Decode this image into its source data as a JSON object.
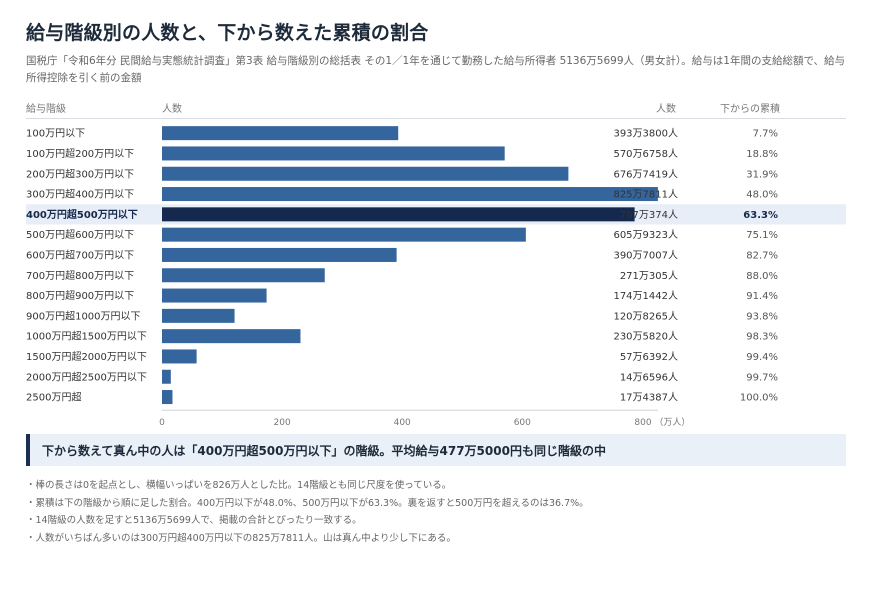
{
  "title": "給与階級別の人数と、下から数えた累積の割合",
  "subtitle": "国税庁「令和6年分 民間給与実態統計調査」第3表 給与階級別の総括表 その1／1年を通じて勤務した給与所得者 5136万5699人（男女計）。給与は1年間の支給総額で、給与所得控除を引く前の金額",
  "headers": {
    "bracket": "給与階級",
    "bar": "人数",
    "count": "人数",
    "cumulative": "下からの累積"
  },
  "colors": {
    "bar": "#34659c",
    "highlight_bar": "#15284d",
    "highlight_row": "#e7eef7"
  },
  "chart_data": {
    "type": "bar",
    "orientation": "horizontal",
    "categories": [
      "100万円以下",
      "100万円超200万円以下",
      "200万円超300万円以下",
      "300万円超400万円以下",
      "400万円超500万円以下",
      "500万円超600万円以下",
      "600万円超700万円以下",
      "700万円超800万円以下",
      "800万円超900万円以下",
      "900万円超1000万円以下",
      "1000万円超1500万円以下",
      "1500万円超2000万円以下",
      "2000万円超2500万円以下",
      "2500万円超"
    ],
    "values": [
      393.38,
      570.6758,
      676.7419,
      825.7811,
      787.0374,
      605.9323,
      390.7007,
      271.0305,
      174.1442,
      120.8265,
      230.582,
      57.6392,
      14.6596,
      17.4387
    ],
    "count_labels": [
      "393万3800人",
      "570万6758人",
      "676万7419人",
      "825万7811人",
      "787万374人",
      "605万9323人",
      "390万7007人",
      "271万305人",
      "174万1442人",
      "120万8265人",
      "230万5820人",
      "57万6392人",
      "14万6596人",
      "17万4387人"
    ],
    "cumulative_labels": [
      "7.7%",
      "18.8%",
      "31.9%",
      "48.0%",
      "63.3%",
      "75.1%",
      "82.7%",
      "88.0%",
      "91.4%",
      "93.8%",
      "98.3%",
      "99.4%",
      "99.7%",
      "100.0%"
    ],
    "highlight_index": 4,
    "xlim": [
      0,
      826
    ],
    "xticks": [
      0,
      200,
      400,
      600,
      800
    ],
    "x_unit": "（万人）"
  },
  "callout": "下から数えて真ん中の人は「400万円超500万円以下」の階級。平均給与477万5000円も同じ階級の中",
  "notes": [
    "・棒の長さは0を起点とし、横幅いっぱいを826万人とした比。14階級とも同じ尺度を使っている。",
    "・累積は下の階級から順に足した割合。400万円以下が48.0%、500万円以下が63.3%。裏を返すと500万円を超えるのは36.7%。",
    "・14階級の人数を足すと5136万5699人で、掲載の合計とぴったり一致する。",
    "・人数がいちばん多いのは300万円超400万円以下の825万7811人。山は真ん中より少し下にある。"
  ]
}
